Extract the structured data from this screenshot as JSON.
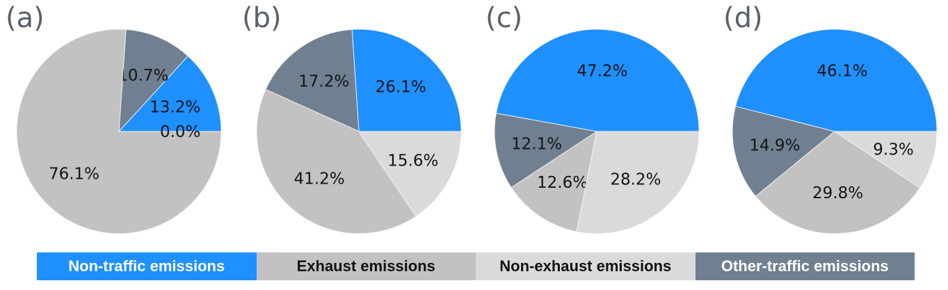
{
  "chart_data": [
    {
      "type": "pie",
      "panel_label": "(a)",
      "start_angle_deg": 0,
      "direction": "counterclockwise",
      "series": [
        {
          "label": "Non-traffic emissions",
          "value": 13.2
        },
        {
          "label": "Other-traffic emissions",
          "value": 10.7
        },
        {
          "label": "Exhaust emissions",
          "value": 76.1
        },
        {
          "label": "Non-exhaust emissions",
          "value": 0.0
        }
      ]
    },
    {
      "type": "pie",
      "panel_label": "(b)",
      "start_angle_deg": 0,
      "direction": "counterclockwise",
      "series": [
        {
          "label": "Non-traffic emissions",
          "value": 26.1
        },
        {
          "label": "Other-traffic emissions",
          "value": 17.2
        },
        {
          "label": "Exhaust emissions",
          "value": 41.2
        },
        {
          "label": "Non-exhaust emissions",
          "value": 15.6
        }
      ]
    },
    {
      "type": "pie",
      "panel_label": "(c)",
      "start_angle_deg": 0,
      "direction": "counterclockwise",
      "series": [
        {
          "label": "Non-traffic emissions",
          "value": 47.2
        },
        {
          "label": "Other-traffic emissions",
          "value": 12.1
        },
        {
          "label": "Exhaust emissions",
          "value": 12.6
        },
        {
          "label": "Non-exhaust emissions",
          "value": 28.2
        }
      ]
    },
    {
      "type": "pie",
      "panel_label": "(d)",
      "start_angle_deg": 0,
      "direction": "counterclockwise",
      "series": [
        {
          "label": "Non-traffic emissions",
          "value": 46.1
        },
        {
          "label": "Other-traffic emissions",
          "value": 14.9
        },
        {
          "label": "Exhaust emissions",
          "value": 29.8
        },
        {
          "label": "Non-exhaust emissions",
          "value": 9.3
        }
      ]
    }
  ],
  "legend": {
    "items": [
      {
        "label": "Non-traffic emissions",
        "bg": "#1e90ff",
        "fg": "#ffffff"
      },
      {
        "label": "Exhaust emissions",
        "bg": "#c2c2c2",
        "fg": "#111111"
      },
      {
        "label": "Non-exhaust emissions",
        "bg": "#dadada",
        "fg": "#111111"
      },
      {
        "label": "Other-traffic emissions",
        "bg": "#708090",
        "fg": "#ffffff"
      }
    ]
  },
  "colors": {
    "Non-traffic emissions": "#1e90ff",
    "Exhaust emissions": "#c2c2c2",
    "Non-exhaust emissions": "#dadada",
    "Other-traffic emissions": "#708090",
    "panel_letter": "#5a6069",
    "pct_label": "#141414"
  },
  "pct_label_format": "one_decimal_percent"
}
